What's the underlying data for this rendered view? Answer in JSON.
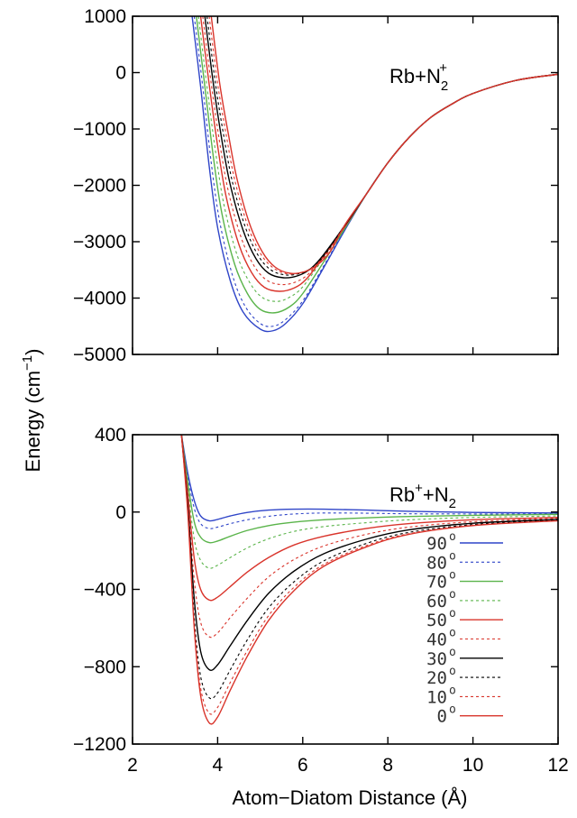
{
  "chart_data": [
    {
      "type": "line",
      "annotation": {
        "base": "Rb+N",
        "sub": "2",
        "sup": "+"
      },
      "xlim": [
        2,
        12
      ],
      "ylim": [
        -5000,
        1000
      ],
      "yticks": [
        "1000",
        "0",
        "−1000",
        "−2000",
        "−3000",
        "−4000",
        "−5000"
      ],
      "ytick_values": [
        1000,
        0,
        -1000,
        -2000,
        -3000,
        -4000,
        -5000
      ],
      "series": [
        {
          "angle_deg": 90,
          "color": "#2f45c8",
          "dash": false,
          "x": [
            3.4,
            3.6,
            3.8,
            4.0,
            4.3,
            4.6,
            5.0,
            5.3,
            5.6,
            6.0,
            6.5,
            7.0,
            7.5,
            8.0,
            8.5,
            9.0,
            9.5,
            10.0,
            11.0,
            12.0
          ],
          "y": [
            1000,
            -250,
            -1650,
            -2750,
            -3700,
            -4250,
            -4550,
            -4580,
            -4450,
            -4100,
            -3450,
            -2780,
            -2150,
            -1600,
            -1150,
            -800,
            -560,
            -370,
            -140,
            -30
          ]
        },
        {
          "angle_deg": 80,
          "color": "#2f45c8",
          "dash": true,
          "x": [
            3.45,
            3.65,
            3.85,
            4.05,
            4.35,
            4.65,
            5.0,
            5.3,
            5.6,
            6.0,
            6.5,
            7.0,
            7.5,
            8.0,
            8.5,
            9.0,
            9.5,
            10.0,
            11.0,
            12.0
          ],
          "y": [
            1000,
            -250,
            -1600,
            -2650,
            -3600,
            -4150,
            -4450,
            -4500,
            -4380,
            -4050,
            -3420,
            -2770,
            -2150,
            -1600,
            -1150,
            -800,
            -560,
            -370,
            -140,
            -30
          ]
        },
        {
          "angle_deg": 70,
          "color": "#5ab44a",
          "dash": false,
          "x": [
            3.5,
            3.7,
            3.9,
            4.1,
            4.4,
            4.7,
            5.0,
            5.35,
            5.7,
            6.0,
            6.5,
            7.0,
            7.5,
            8.0,
            8.5,
            9.0,
            9.5,
            10.0,
            11.0,
            12.0
          ],
          "y": [
            1000,
            -250,
            -1500,
            -2500,
            -3400,
            -3920,
            -4200,
            -4260,
            -4150,
            -3920,
            -3350,
            -2750,
            -2150,
            -1600,
            -1150,
            -800,
            -560,
            -370,
            -140,
            -30
          ]
        },
        {
          "angle_deg": 60,
          "color": "#5ab44a",
          "dash": true,
          "x": [
            3.55,
            3.75,
            3.95,
            4.15,
            4.45,
            4.75,
            5.05,
            5.4,
            5.7,
            6.0,
            6.5,
            7.0,
            7.5,
            8.0,
            8.5,
            9.0,
            9.5,
            10.0,
            11.0,
            12.0
          ],
          "y": [
            1000,
            -250,
            -1400,
            -2350,
            -3220,
            -3720,
            -3990,
            -4060,
            -3980,
            -3800,
            -3280,
            -2730,
            -2150,
            -1600,
            -1150,
            -800,
            -560,
            -370,
            -140,
            -30
          ]
        },
        {
          "angle_deg": 50,
          "color": "#d9342b",
          "dash": false,
          "x": [
            3.6,
            3.8,
            4.0,
            4.2,
            4.5,
            4.8,
            5.1,
            5.45,
            5.8,
            6.1,
            6.5,
            7.0,
            7.5,
            8.0,
            8.5,
            9.0,
            9.5,
            10.0,
            11.0,
            12.0
          ],
          "y": [
            1000,
            -200,
            -1300,
            -2200,
            -3050,
            -3550,
            -3810,
            -3880,
            -3820,
            -3650,
            -3250,
            -2720,
            -2150,
            -1600,
            -1150,
            -800,
            -560,
            -370,
            -140,
            -30
          ]
        },
        {
          "angle_deg": 40,
          "color": "#d9342b",
          "dash": true,
          "x": [
            3.65,
            3.85,
            4.05,
            4.25,
            4.55,
            4.85,
            5.15,
            5.5,
            5.85,
            6.15,
            6.5,
            7.0,
            7.5,
            8.0,
            8.5,
            9.0,
            9.5,
            10.0,
            11.0,
            12.0
          ],
          "y": [
            1000,
            -200,
            -1250,
            -2100,
            -2920,
            -3420,
            -3680,
            -3760,
            -3710,
            -3560,
            -3230,
            -2710,
            -2150,
            -1600,
            -1150,
            -800,
            -560,
            -370,
            -140,
            -30
          ]
        },
        {
          "angle_deg": 30,
          "color": "#000000",
          "dash": false,
          "x": [
            3.7,
            3.9,
            4.1,
            4.3,
            4.6,
            4.9,
            5.2,
            5.55,
            5.9,
            6.2,
            6.5,
            7.0,
            7.5,
            8.0,
            8.5,
            9.0,
            9.5,
            10.0,
            11.0,
            12.0
          ],
          "y": [
            1000,
            -200,
            -1200,
            -2000,
            -2800,
            -3300,
            -3560,
            -3640,
            -3600,
            -3470,
            -3220,
            -2700,
            -2150,
            -1600,
            -1150,
            -800,
            -560,
            -370,
            -140,
            -30
          ]
        },
        {
          "angle_deg": 20,
          "color": "#000000",
          "dash": true,
          "x": [
            3.75,
            3.95,
            4.15,
            4.35,
            4.65,
            4.95,
            5.25,
            5.6,
            5.95,
            6.25,
            6.55,
            7.0,
            7.5,
            8.0,
            8.5,
            9.0,
            9.5,
            10.0,
            11.0,
            12.0
          ],
          "y": [
            1000,
            -200,
            -1150,
            -1950,
            -2740,
            -3240,
            -3500,
            -3590,
            -3560,
            -3440,
            -3200,
            -2690,
            -2150,
            -1600,
            -1150,
            -800,
            -560,
            -370,
            -140,
            -30
          ]
        },
        {
          "angle_deg": 10,
          "color": "#d9342b",
          "dash": true,
          "x": [
            3.8,
            4.0,
            4.2,
            4.4,
            4.7,
            5.0,
            5.3,
            5.65,
            6.0,
            6.3,
            6.6,
            7.0,
            7.5,
            8.0,
            8.5,
            9.0,
            9.5,
            10.0,
            11.0,
            12.0
          ],
          "y": [
            1000,
            -200,
            -1100,
            -1900,
            -2700,
            -3200,
            -3460,
            -3570,
            -3540,
            -3420,
            -3180,
            -2690,
            -2150,
            -1600,
            -1150,
            -800,
            -560,
            -370,
            -140,
            -30
          ]
        },
        {
          "angle_deg": 0,
          "color": "#d9342b",
          "dash": false,
          "x": [
            3.85,
            4.05,
            4.25,
            4.45,
            4.75,
            5.05,
            5.35,
            5.7,
            6.05,
            6.35,
            6.65,
            7.0,
            7.5,
            8.0,
            8.5,
            9.0,
            9.5,
            10.0,
            11.0,
            12.0
          ],
          "y": [
            1000,
            -200,
            -1080,
            -1870,
            -2680,
            -3180,
            -3450,
            -3560,
            -3530,
            -3410,
            -3170,
            -2690,
            -2150,
            -1600,
            -1150,
            -800,
            -560,
            -370,
            -140,
            -30
          ]
        }
      ]
    },
    {
      "type": "line",
      "annotation": {
        "base1": "Rb",
        "sup1": "+",
        "mid": "+N",
        "sub": "2"
      },
      "xlim": [
        2,
        12
      ],
      "ylim": [
        -1200,
        400
      ],
      "xticks": [
        "2",
        "4",
        "6",
        "8",
        "10",
        "12"
      ],
      "xtick_values": [
        2,
        4,
        6,
        8,
        10,
        12
      ],
      "yticks": [
        "400",
        "0",
        "−400",
        "−800",
        "−1200"
      ],
      "ytick_values": [
        400,
        0,
        -400,
        -800,
        -1200
      ],
      "legend": {
        "placement": "bottom-right",
        "degree_symbol": "o",
        "entries": [
          "90",
          "80",
          "70",
          "60",
          "50",
          "40",
          "30",
          "20",
          "10",
          "0"
        ]
      },
      "series": [
        {
          "angle_deg": 90,
          "color": "#2f45c8",
          "dash": false,
          "x": [
            3.15,
            3.3,
            3.45,
            3.6,
            3.8,
            4.0,
            4.3,
            4.7,
            5.2,
            5.8,
            6.5,
            7.5,
            8.5,
            10.0,
            12.0
          ],
          "y": [
            400,
            200,
            60,
            -20,
            -45,
            -38,
            -20,
            -2,
            10,
            15,
            15,
            10,
            4,
            -2,
            -5
          ]
        },
        {
          "angle_deg": 80,
          "color": "#2f45c8",
          "dash": true,
          "x": [
            3.15,
            3.3,
            3.45,
            3.6,
            3.8,
            4.0,
            4.3,
            4.7,
            5.2,
            5.8,
            6.5,
            7.5,
            8.5,
            10.0,
            12.0
          ],
          "y": [
            400,
            180,
            20,
            -60,
            -85,
            -78,
            -60,
            -40,
            -22,
            -10,
            -5,
            -6,
            -9,
            -10,
            -10
          ]
        },
        {
          "angle_deg": 70,
          "color": "#5ab44a",
          "dash": false,
          "x": [
            3.15,
            3.3,
            3.45,
            3.6,
            3.8,
            4.0,
            4.3,
            4.7,
            5.2,
            5.8,
            6.5,
            7.5,
            8.5,
            10.0,
            12.0
          ],
          "y": [
            400,
            150,
            -50,
            -130,
            -158,
            -150,
            -125,
            -95,
            -70,
            -52,
            -40,
            -30,
            -23,
            -17,
            -12
          ]
        },
        {
          "angle_deg": 60,
          "color": "#5ab44a",
          "dash": true,
          "x": [
            3.15,
            3.3,
            3.45,
            3.6,
            3.8,
            4.0,
            4.3,
            4.7,
            5.2,
            5.8,
            6.5,
            7.5,
            8.5,
            10.0,
            12.0
          ],
          "y": [
            400,
            120,
            -140,
            -250,
            -290,
            -275,
            -235,
            -185,
            -138,
            -100,
            -75,
            -55,
            -40,
            -28,
            -20
          ]
        },
        {
          "angle_deg": 50,
          "color": "#d9342b",
          "dash": false,
          "x": [
            3.15,
            3.3,
            3.45,
            3.6,
            3.8,
            4.0,
            4.3,
            4.7,
            5.2,
            5.8,
            6.5,
            7.5,
            8.5,
            10.0,
            12.0
          ],
          "y": [
            400,
            90,
            -240,
            -400,
            -455,
            -440,
            -385,
            -310,
            -235,
            -170,
            -125,
            -85,
            -60,
            -40,
            -28
          ]
        },
        {
          "angle_deg": 40,
          "color": "#d9342b",
          "dash": true,
          "x": [
            3.15,
            3.3,
            3.45,
            3.6,
            3.8,
            4.0,
            4.3,
            4.7,
            5.2,
            5.8,
            6.5,
            7.5,
            8.5,
            10.0,
            12.0
          ],
          "y": [
            400,
            60,
            -350,
            -570,
            -645,
            -625,
            -545,
            -445,
            -335,
            -245,
            -175,
            -115,
            -78,
            -50,
            -33
          ]
        },
        {
          "angle_deg": 30,
          "color": "#000000",
          "dash": false,
          "x": [
            3.15,
            3.3,
            3.45,
            3.6,
            3.8,
            4.0,
            4.3,
            4.7,
            5.2,
            5.8,
            6.5,
            7.5,
            8.5,
            10.0,
            12.0
          ],
          "y": [
            400,
            30,
            -450,
            -720,
            -815,
            -790,
            -690,
            -560,
            -420,
            -305,
            -215,
            -140,
            -92,
            -58,
            -38
          ]
        },
        {
          "angle_deg": 20,
          "color": "#000000",
          "dash": true,
          "x": [
            3.15,
            3.3,
            3.45,
            3.6,
            3.8,
            4.0,
            4.3,
            4.7,
            5.2,
            5.8,
            6.5,
            7.5,
            8.5,
            10.0,
            12.0
          ],
          "y": [
            400,
            10,
            -540,
            -850,
            -960,
            -935,
            -815,
            -660,
            -495,
            -360,
            -252,
            -162,
            -105,
            -65,
            -42
          ]
        },
        {
          "angle_deg": 10,
          "color": "#d9342b",
          "dash": true,
          "x": [
            3.15,
            3.3,
            3.45,
            3.6,
            3.8,
            4.0,
            4.3,
            4.7,
            5.2,
            5.8,
            6.5,
            7.5,
            8.5,
            10.0,
            12.0
          ],
          "y": [
            400,
            0,
            -580,
            -910,
            -1040,
            -1010,
            -880,
            -715,
            -535,
            -388,
            -270,
            -173,
            -112,
            -68,
            -44
          ]
        },
        {
          "angle_deg": 0,
          "color": "#d9342b",
          "dash": false,
          "x": [
            3.15,
            3.3,
            3.45,
            3.6,
            3.8,
            4.0,
            4.3,
            4.7,
            5.2,
            5.8,
            6.5,
            7.5,
            8.5,
            10.0,
            12.0
          ],
          "y": [
            400,
            -10,
            -600,
            -950,
            -1090,
            -1060,
            -920,
            -745,
            -560,
            -405,
            -280,
            -180,
            -115,
            -70,
            -45
          ]
        }
      ]
    }
  ],
  "ylabel": {
    "base": "Energy (cm",
    "sup": "−1",
    "close": ")"
  },
  "xlabel": "Atom−Diatom Distance (Å)"
}
